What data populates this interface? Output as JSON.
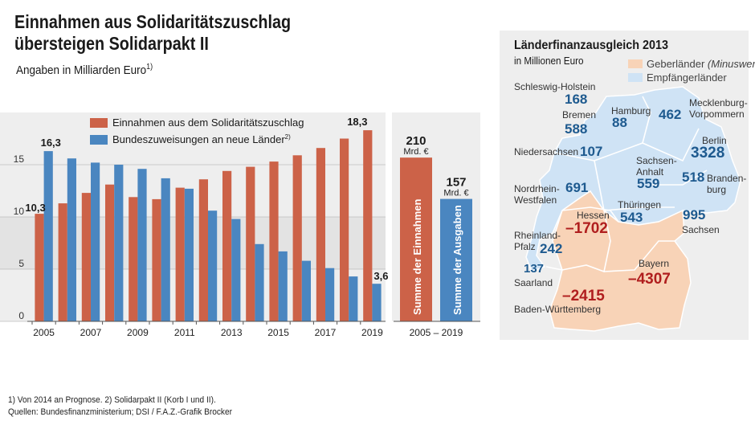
{
  "title": {
    "line1": "Einnahmen aus Solidaritätszuschlag",
    "line2": "übersteigen Solidarpakt II"
  },
  "subtitle": {
    "text": "Angaben in Milliarden Euro",
    "footnote_mark": "1)"
  },
  "colors": {
    "red": "#cc6248",
    "blue": "#4a86c0",
    "map_giver": "#f8d3b7",
    "map_receiver": "#cfe3f5",
    "text_blue": "#1e5a8f",
    "text_red": "#b01e1e"
  },
  "chart_data": [
    {
      "type": "bar",
      "title": "Einnahmen aus Solidaritätszuschlag übersteigen Solidarpakt II",
      "ylabel": "Angaben in Milliarden Euro",
      "ylim": [
        0,
        20
      ],
      "yticks": [
        0,
        5,
        10,
        15
      ],
      "grid": true,
      "categories": [
        "2005",
        "2006",
        "2007",
        "2008",
        "2009",
        "2010",
        "2011",
        "2012",
        "2013",
        "2014",
        "2015",
        "2016",
        "2017",
        "2018",
        "2019"
      ],
      "xtick_labels": [
        "2005",
        "2007",
        "2009",
        "2011",
        "2013",
        "2015",
        "2017",
        "2019"
      ],
      "series": [
        {
          "name": "Einnahmen aus dem Solidaritätszuschlag",
          "color": "#cc6248",
          "values": [
            10.3,
            11.3,
            12.3,
            13.1,
            11.9,
            11.7,
            12.8,
            13.6,
            14.4,
            14.8,
            15.3,
            15.9,
            16.6,
            17.5,
            18.3
          ]
        },
        {
          "name": "Bundeszuweisungen an neue Länder",
          "name_footnote": "2)",
          "color": "#4a86c0",
          "values": [
            16.3,
            15.6,
            15.2,
            15.0,
            14.6,
            13.7,
            12.7,
            10.6,
            9.8,
            7.4,
            6.7,
            5.8,
            5.1,
            4.3,
            3.6
          ]
        }
      ],
      "value_labels": {
        "red_first": "10,3",
        "blue_first": "16,3",
        "red_last": "18,3",
        "blue_last": "3,6"
      }
    },
    {
      "type": "bar",
      "categories": [
        "Summe der Einnahmen",
        "Summe der Ausgaben"
      ],
      "values": [
        210,
        157
      ],
      "value_labels": [
        "210",
        "157"
      ],
      "unit": "Mrd. €",
      "xlabel": "2005 – 2019"
    }
  ],
  "map": {
    "title": "Länderfinanzausgleich 2013",
    "subtitle": "in Millionen Euro",
    "legend": {
      "giver": "Geberländer",
      "giver_note": "(Minuswert)",
      "receiver": "Empfängerländer"
    },
    "states": [
      {
        "id": "schleswig-holstein",
        "name": "Schleswig-Holstein",
        "value": "168",
        "kind": "receiver"
      },
      {
        "id": "hamburg",
        "name": "Hamburg",
        "value": "88",
        "kind": "receiver"
      },
      {
        "id": "mecklenburg-vorpommern",
        "name": "Mecklenburg-",
        "name2": "Vorpommern",
        "value": "462",
        "kind": "receiver"
      },
      {
        "id": "bremen",
        "name": "Bremen",
        "value": "588",
        "kind": "receiver"
      },
      {
        "id": "niedersachsen",
        "name": "Niedersachsen",
        "value": "107",
        "kind": "receiver"
      },
      {
        "id": "sachsen-anhalt",
        "name": "Sachsen-",
        "name2": "Anhalt",
        "value": "559",
        "kind": "receiver"
      },
      {
        "id": "berlin",
        "name": "Berlin",
        "value": "3328",
        "kind": "receiver"
      },
      {
        "id": "brandenburg",
        "name": "Branden-",
        "name2": "burg",
        "value": "518",
        "kind": "receiver"
      },
      {
        "id": "nordrhein-westfalen",
        "name": "Nordrhein-",
        "name2": "Westfalen",
        "value": "691",
        "kind": "receiver"
      },
      {
        "id": "hessen",
        "name": "Hessen",
        "value": "–1702",
        "kind": "giver"
      },
      {
        "id": "thueringen",
        "name": "Thüringen",
        "value": "543",
        "kind": "receiver"
      },
      {
        "id": "sachsen",
        "name": "Sachsen",
        "value": "995",
        "kind": "receiver"
      },
      {
        "id": "rheinland-pfalz",
        "name": "Rheinland-",
        "name2": "Pfalz",
        "value": "242",
        "kind": "receiver"
      },
      {
        "id": "saarland",
        "name": "Saarland",
        "value": "137",
        "kind": "receiver"
      },
      {
        "id": "bayern",
        "name": "Bayern",
        "value": "–4307",
        "kind": "giver"
      },
      {
        "id": "baden-wuerttemberg",
        "name": "Baden-Württemberg",
        "value": "–2415",
        "kind": "giver"
      }
    ]
  },
  "footnotes": {
    "line1": "1) Von 2014 an Prognose. 2) Solidarpakt II (Korb I und II).",
    "line2": "Quellen: Bundesfinanzministerium; DSI / F.A.Z.-Grafik Brocker"
  }
}
